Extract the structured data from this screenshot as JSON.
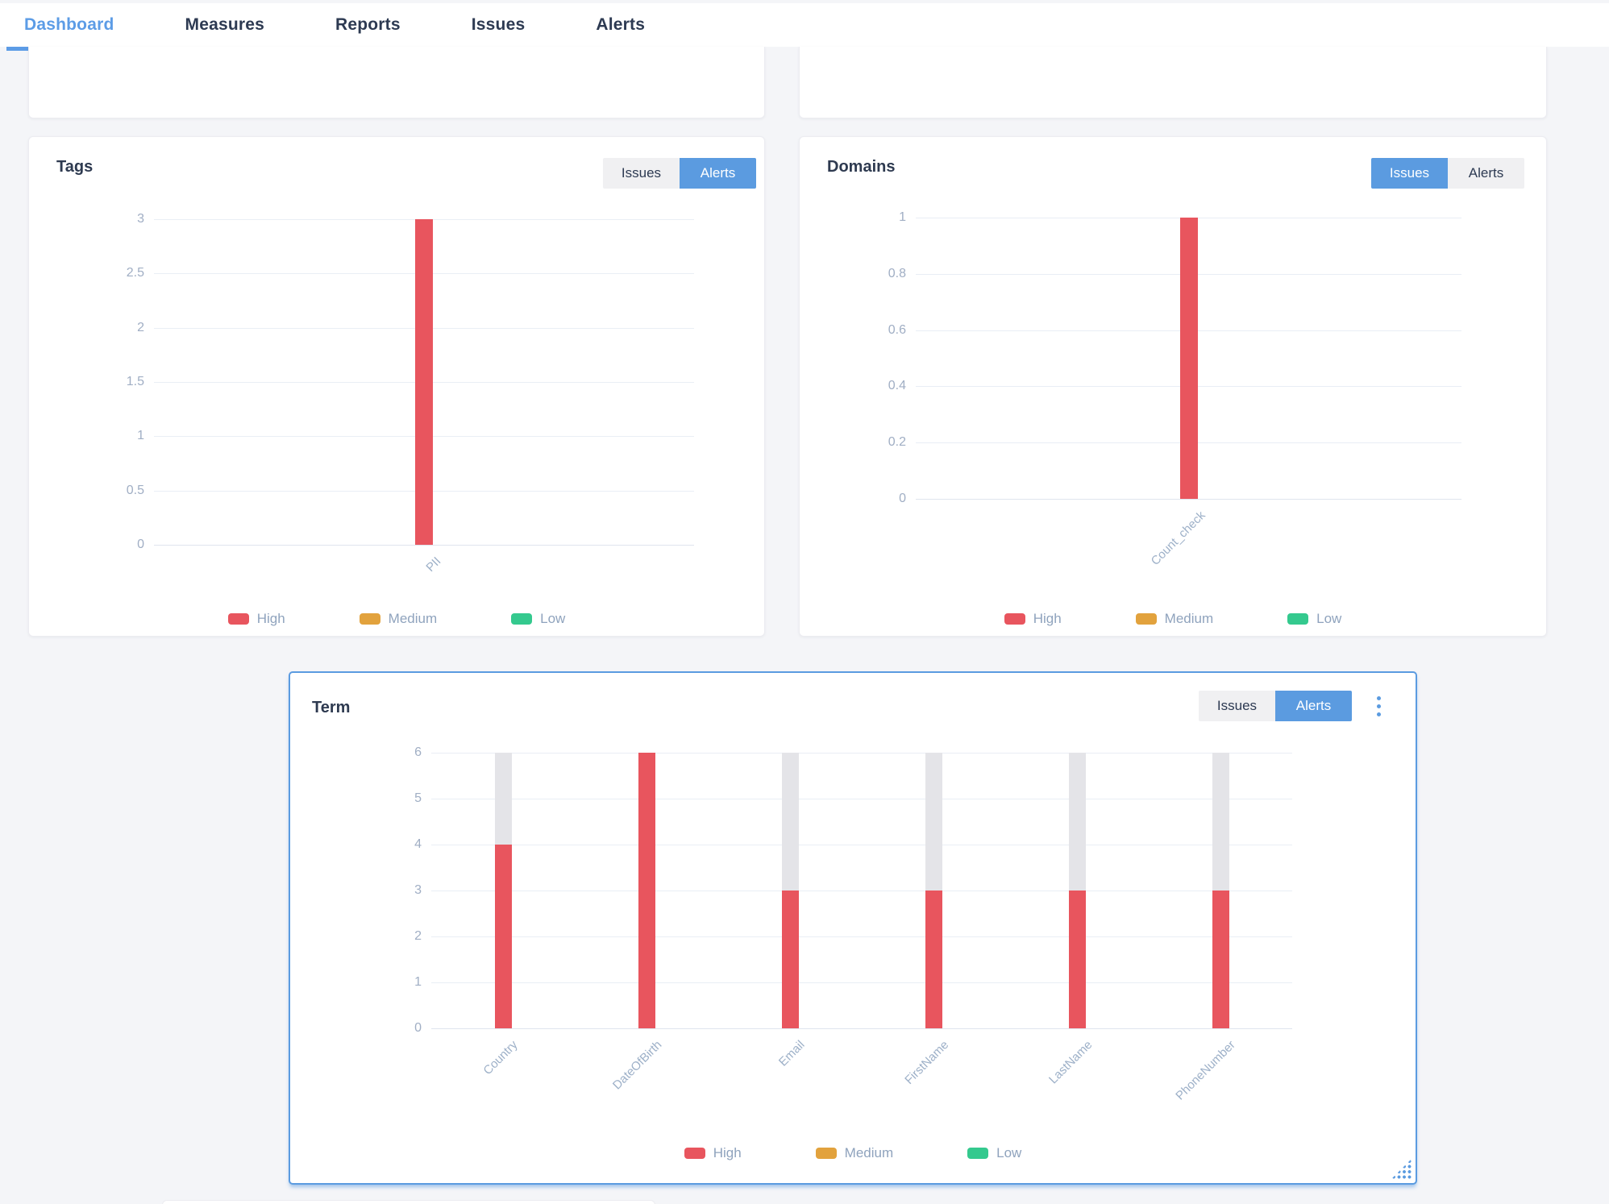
{
  "nav": {
    "tabs": [
      {
        "label": "Dashboard",
        "active": true
      },
      {
        "label": "Measures",
        "active": false
      },
      {
        "label": "Reports",
        "active": false
      },
      {
        "label": "Issues",
        "active": false
      },
      {
        "label": "Alerts",
        "active": false
      }
    ]
  },
  "colors": {
    "accent_blue": "#5b9be0",
    "high_red": "#e8555e",
    "medium_orange": "#e2a23d",
    "low_green": "#34c98e",
    "axis_text": "#a0aec4",
    "bar_track_gray": "#e4e4e8"
  },
  "cards": {
    "tags": {
      "title": "Tags",
      "toggle": {
        "issues_label": "Issues",
        "alerts_label": "Alerts",
        "active": "alerts"
      }
    },
    "domains": {
      "title": "Domains",
      "toggle": {
        "issues_label": "Issues",
        "alerts_label": "Alerts",
        "active": "issues"
      }
    },
    "term": {
      "title": "Term",
      "toggle": {
        "issues_label": "Issues",
        "alerts_label": "Alerts",
        "active": "alerts"
      },
      "menu_icon": "kebab-vertical-dots",
      "resize_icon": "corner-resize-dots"
    }
  },
  "chart_data": [
    {
      "id": "tags",
      "type": "bar",
      "title": "Tags",
      "categories": [
        "PII"
      ],
      "series": [
        {
          "name": "High",
          "color": "#e8555e",
          "values": [
            3
          ]
        },
        {
          "name": "Medium",
          "color": "#e2a23d",
          "values": [
            0
          ]
        },
        {
          "name": "Low",
          "color": "#34c98e",
          "values": [
            0
          ]
        }
      ],
      "ylim": [
        0,
        3
      ],
      "yticks": [
        "3",
        "2.5",
        "2",
        "1.5",
        "1",
        "0.5",
        "0"
      ],
      "grid": true,
      "legend_position": "bottom"
    },
    {
      "id": "domains",
      "type": "bar",
      "title": "Domains",
      "categories": [
        "Count_check"
      ],
      "series": [
        {
          "name": "High",
          "color": "#e8555e",
          "values": [
            1
          ]
        },
        {
          "name": "Medium",
          "color": "#e2a23d",
          "values": [
            0
          ]
        },
        {
          "name": "Low",
          "color": "#34c98e",
          "values": [
            0
          ]
        }
      ],
      "ylim": [
        0,
        1
      ],
      "yticks": [
        "1",
        "0.8",
        "0.6",
        "0.4",
        "0.2",
        "0"
      ],
      "grid": true,
      "legend_position": "bottom"
    },
    {
      "id": "term",
      "type": "bar",
      "title": "Term",
      "categories": [
        "Country",
        "DateOfBirth",
        "Email",
        "FirstName",
        "LastName",
        "PhoneNumber"
      ],
      "series": [
        {
          "name": "High",
          "color": "#e8555e",
          "values": [
            4,
            6,
            3,
            3,
            3,
            3
          ]
        },
        {
          "name": "Medium",
          "color": "#e2a23d",
          "values": [
            0,
            0,
            0,
            0,
            0,
            0
          ]
        },
        {
          "name": "Low",
          "color": "#34c98e",
          "values": [
            0,
            0,
            0,
            0,
            0,
            0
          ]
        }
      ],
      "track_max": 6,
      "ylim": [
        0,
        6
      ],
      "yticks": [
        "6",
        "5",
        "4",
        "3",
        "2",
        "1",
        "0"
      ],
      "grid": true,
      "legend_position": "bottom"
    }
  ]
}
